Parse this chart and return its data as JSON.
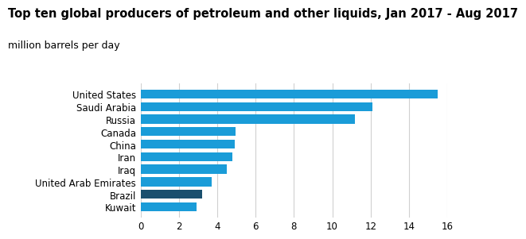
{
  "title_line1": "Top ten global producers of petroleum and other liquids, Jan 2017 - Aug 2017",
  "title_line2": "million barrels per day",
  "countries": [
    "Kuwait",
    "Brazil",
    "United Arab Emirates",
    "Iraq",
    "Iran",
    "China",
    "Canada",
    "Russia",
    "Saudi Arabia",
    "United States"
  ],
  "values": [
    2.9,
    3.2,
    3.7,
    4.5,
    4.8,
    4.9,
    4.95,
    11.2,
    12.1,
    15.5
  ],
  "bar_colors": [
    "#1a9cd8",
    "#1a4f6e",
    "#1a9cd8",
    "#1a9cd8",
    "#1a9cd8",
    "#1a9cd8",
    "#1a9cd8",
    "#1a9cd8",
    "#1a9cd8",
    "#1a9cd8"
  ],
  "xlim": [
    0,
    16
  ],
  "xticks": [
    0,
    2,
    4,
    6,
    8,
    10,
    12,
    14,
    16
  ],
  "background_color": "#ffffff",
  "grid_color": "#d0d0d0",
  "title1_fontsize": 10.5,
  "title2_fontsize": 9,
  "label_fontsize": 8.5,
  "tick_fontsize": 8.5,
  "bar_height": 0.72
}
